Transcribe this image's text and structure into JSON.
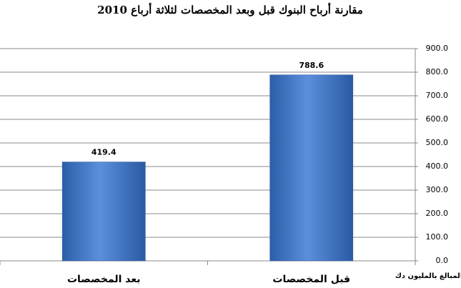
{
  "chart_data": {
    "type": "bar",
    "title": "مقارنة أرباح البنوك قبل وبعد المخصصات لثلاثة أرباع 2010",
    "y_label": "المبالغ بالمليون دك",
    "categories": [
      "بعد المخصصات",
      "قبل المخصصات"
    ],
    "values": [
      419.4,
      788.6
    ],
    "color": "#3f73c4",
    "ylim": [
      0,
      900
    ],
    "yticks": [
      {
        "value": 0,
        "label": "0.0"
      },
      {
        "value": 100,
        "label": "100.0"
      },
      {
        "value": 200,
        "label": "200.0"
      },
      {
        "value": 300,
        "label": "300.0"
      },
      {
        "value": 400,
        "label": "400.0"
      },
      {
        "value": 500,
        "label": "500.0"
      },
      {
        "value": 600,
        "label": "600.0"
      },
      {
        "value": 700,
        "label": "700.0"
      },
      {
        "value": 800,
        "label": "800.0"
      },
      {
        "value": 900,
        "label": "900.0"
      }
    ],
    "grid": true
  }
}
